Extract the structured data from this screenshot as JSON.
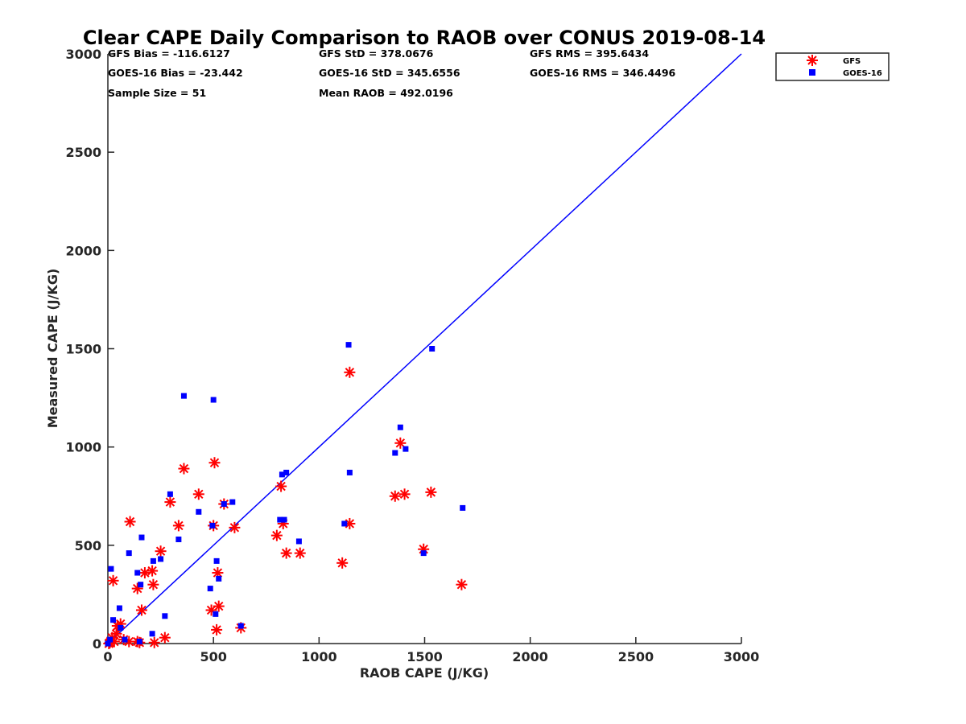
{
  "chart_data": {
    "type": "scatter",
    "title": "Clear CAPE Daily Comparison to RAOB over CONUS 2019-08-14",
    "xlabel": "RAOB CAPE (J/KG)",
    "ylabel": "Measured CAPE (J/KG)",
    "xlim": [
      0,
      3000
    ],
    "ylim": [
      0,
      3000
    ],
    "xticks": [
      "0",
      "500",
      "1000",
      "1500",
      "2000",
      "2500",
      "3000"
    ],
    "yticks": [
      "0",
      "500",
      "1000",
      "1500",
      "2000",
      "2500",
      "3000"
    ],
    "grid": false,
    "legend_position": "top-right",
    "colors": {
      "gfs": "#ff0000",
      "goes": "#0000ff",
      "line": "#0000ff"
    },
    "stats": [
      [
        "GFS Bias = -116.6127",
        "GFS StD = 378.0676",
        "GFS RMS = 395.6434"
      ],
      [
        "GOES-16 Bias = -23.442",
        "GOES-16 StD = 345.6556",
        "GOES-16 RMS = 346.4496"
      ],
      [
        "Sample Size = 51",
        "Mean RAOB = 492.0196",
        ""
      ]
    ],
    "reference_line": {
      "x": [
        0,
        3000
      ],
      "y": [
        0,
        3000
      ]
    },
    "series": [
      {
        "name": "GFS",
        "marker": "asterisk",
        "points": [
          [
            5,
            0
          ],
          [
            10,
            5
          ],
          [
            20,
            30
          ],
          [
            25,
            320
          ],
          [
            30,
            10
          ],
          [
            40,
            50
          ],
          [
            45,
            90
          ],
          [
            60,
            100
          ],
          [
            75,
            20
          ],
          [
            100,
            10
          ],
          [
            105,
            620
          ],
          [
            140,
            280
          ],
          [
            140,
            10
          ],
          [
            150,
            5
          ],
          [
            160,
            170
          ],
          [
            175,
            360
          ],
          [
            210,
            370
          ],
          [
            215,
            300
          ],
          [
            220,
            5
          ],
          [
            250,
            470
          ],
          [
            270,
            30
          ],
          [
            295,
            720
          ],
          [
            335,
            600
          ],
          [
            360,
            890
          ],
          [
            430,
            760
          ],
          [
            490,
            170
          ],
          [
            500,
            600
          ],
          [
            505,
            920
          ],
          [
            515,
            70
          ],
          [
            520,
            360
          ],
          [
            525,
            190
          ],
          [
            550,
            710
          ],
          [
            600,
            590
          ],
          [
            630,
            80
          ],
          [
            800,
            550
          ],
          [
            820,
            800
          ],
          [
            830,
            610
          ],
          [
            845,
            460
          ],
          [
            910,
            460
          ],
          [
            1110,
            410
          ],
          [
            1145,
            610
          ],
          [
            1145,
            1380
          ],
          [
            1360,
            750
          ],
          [
            1385,
            1020
          ],
          [
            1405,
            760
          ],
          [
            1495,
            480
          ],
          [
            1530,
            770
          ],
          [
            1675,
            300
          ]
        ]
      },
      {
        "name": "GOES-16",
        "marker": "square",
        "points": [
          [
            0,
            0
          ],
          [
            10,
            20
          ],
          [
            15,
            380
          ],
          [
            25,
            120
          ],
          [
            55,
            180
          ],
          [
            60,
            80
          ],
          [
            80,
            20
          ],
          [
            100,
            460
          ],
          [
            140,
            360
          ],
          [
            150,
            10
          ],
          [
            155,
            300
          ],
          [
            160,
            540
          ],
          [
            210,
            50
          ],
          [
            215,
            420
          ],
          [
            250,
            430
          ],
          [
            270,
            140
          ],
          [
            295,
            760
          ],
          [
            335,
            530
          ],
          [
            360,
            1260
          ],
          [
            430,
            670
          ],
          [
            485,
            280
          ],
          [
            495,
            600
          ],
          [
            500,
            1240
          ],
          [
            510,
            150
          ],
          [
            515,
            420
          ],
          [
            525,
            330
          ],
          [
            550,
            710
          ],
          [
            590,
            720
          ],
          [
            630,
            90
          ],
          [
            815,
            630
          ],
          [
            825,
            860
          ],
          [
            835,
            630
          ],
          [
            845,
            870
          ],
          [
            905,
            520
          ],
          [
            1120,
            610
          ],
          [
            1140,
            1520
          ],
          [
            1145,
            870
          ],
          [
            1360,
            970
          ],
          [
            1385,
            1100
          ],
          [
            1410,
            990
          ],
          [
            1495,
            460
          ],
          [
            1535,
            1500
          ],
          [
            1680,
            690
          ]
        ]
      }
    ]
  }
}
